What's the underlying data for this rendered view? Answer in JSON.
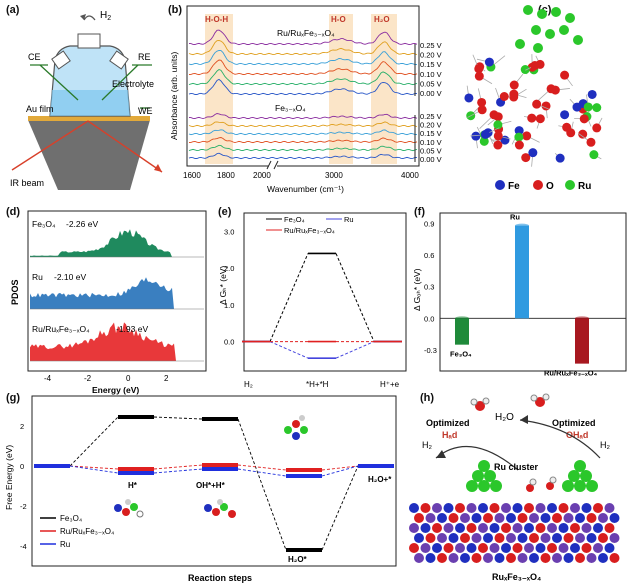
{
  "panels": {
    "a": {
      "label": "(a)",
      "h2": "H",
      "h2sub": "2",
      "ce": "CE",
      "re": "RE",
      "electrolyte": "Electrolyte",
      "au_film": "Au film",
      "we": "WE",
      "ir_beam": "IR beam"
    },
    "b": {
      "label": "(b)",
      "ylabel": "Absorbance (arb. units)",
      "xlabel": "Wavenumber (cm⁻¹)",
      "bands": [
        "H-O-H",
        "H-O",
        "H₂O"
      ],
      "top_label": "Ru/RuₓFe₃₋ₓO₄",
      "bottom_label": "Fe₃₋ₓO₄",
      "xticks": [
        "1600",
        "1800",
        "2000",
        "3000",
        "4000"
      ],
      "potentials": [
        "0.25 V",
        "0.20 V",
        "0.15 V",
        "0.10 V",
        "0.05 V",
        "0.00 V"
      ]
    },
    "c": {
      "label": "(c)",
      "legend": [
        "Fe",
        "O",
        "Ru"
      ],
      "colors": {
        "Fe": "#1f2fbf",
        "O": "#d81e1e",
        "Ru": "#2bc72b"
      }
    },
    "d": {
      "label": "(d)",
      "ylabel": "PDOS",
      "xlabel": "Energy (eV)",
      "xticks": [
        "-4",
        "-2",
        "0",
        "2"
      ],
      "traces": [
        {
          "name": "Fe₃O₄",
          "value": "-2.26 eV",
          "color": "#1f8a5e"
        },
        {
          "name": "Ru",
          "value": "-2.10 eV",
          "color": "#3a7fc0"
        },
        {
          "name": "Ru/RuₓFe₃₋ₓO₄",
          "value": "-1.93 eV",
          "color": "#e8383a"
        }
      ]
    },
    "e": {
      "label": "(e)",
      "ylabel": "Δ Gₕ* (eV)",
      "yticks": [
        "3.0",
        "2.0",
        "1.0",
        "0.0"
      ],
      "xcats": [
        "H₂",
        "*H+*H",
        "H⁺+e"
      ],
      "legend": [
        "Fe₃O₄",
        "Ru",
        "Ru/RuₓFe₃₋ₓO₄"
      ]
    },
    "f": {
      "label": "(f)",
      "ylabel": "Δ Gₒₕ* (eV)",
      "yticks": [
        "0.9",
        "0.6",
        "0.3",
        "0.0",
        "-0.3"
      ],
      "bars": [
        {
          "name": "Fe₃O₄",
          "value": -0.25,
          "color": "#1f8a3a"
        },
        {
          "name": "Ru",
          "value": 0.88,
          "color": "#2f9ae0"
        },
        {
          "name": "Ru/RuₓFe₃₋ₓO₄",
          "value": -0.43,
          "color": "#a81820"
        }
      ]
    },
    "g": {
      "label": "(g)",
      "ylabel": "Free Energy (eV)",
      "xlabel": "Reaction steps",
      "yticks": [
        "2",
        "0",
        "-2",
        "-4"
      ],
      "steps": [
        "H*",
        "OH*+H*",
        "H₂O*",
        "H₂O+*"
      ],
      "legend": [
        "Fe₃O₄",
        "Ru/RuₓFe₃₋ₓO₄",
        "Ru"
      ]
    },
    "h": {
      "label": "(h)",
      "h2o": "H₂O",
      "optimized": "Optimized",
      "had": "Hₐd",
      "ohad": "OHₐd",
      "h2": "H₂",
      "ru_cluster": "Ru cluster",
      "support": "RuₓFe₃₋ₓO₄"
    }
  },
  "chart_data": [
    {
      "type": "bar",
      "categories": [
        "Fe₃O₄",
        "Ru",
        "Ru/RuₓFe₃₋ₓO₄"
      ],
      "values": [
        -0.25,
        0.88,
        -0.43
      ],
      "ylabel": "Δ Gₒₕ* (eV)",
      "ylim": [
        -0.5,
        1.0
      ]
    },
    {
      "type": "line",
      "categories": [
        "H₂",
        "*H+*H",
        "H⁺+e"
      ],
      "series": [
        {
          "name": "Fe₃O₄",
          "values": [
            0.0,
            2.4,
            0.0
          ]
        },
        {
          "name": "Ru",
          "values": [
            0.0,
            -0.45,
            0.0
          ]
        },
        {
          "name": "Ru/RuₓFe₃₋ₓO₄",
          "values": [
            0.0,
            0.0,
            0.0
          ]
        }
      ],
      "ylabel": "Δ Gₕ* (eV)",
      "ylim": [
        -0.8,
        3.5
      ]
    },
    {
      "type": "line",
      "categories": [
        "",
        "H*",
        "OH*+H*",
        "H₂O*",
        "H₂O+*"
      ],
      "series": [
        {
          "name": "Fe₃O₄",
          "values": [
            0.0,
            2.45,
            2.35,
            -4.2,
            0.0
          ]
        },
        {
          "name": "Ru/RuₓFe₃₋ₓO₄",
          "values": [
            0.0,
            -0.15,
            0.05,
            -0.2,
            0.0
          ]
        },
        {
          "name": "Ru",
          "values": [
            0.0,
            -0.35,
            -0.15,
            -0.5,
            0.0
          ]
        }
      ],
      "ylabel": "Free Energy (eV)",
      "xlabel": "Reaction steps",
      "ylim": [
        -5,
        3.5
      ]
    }
  ]
}
